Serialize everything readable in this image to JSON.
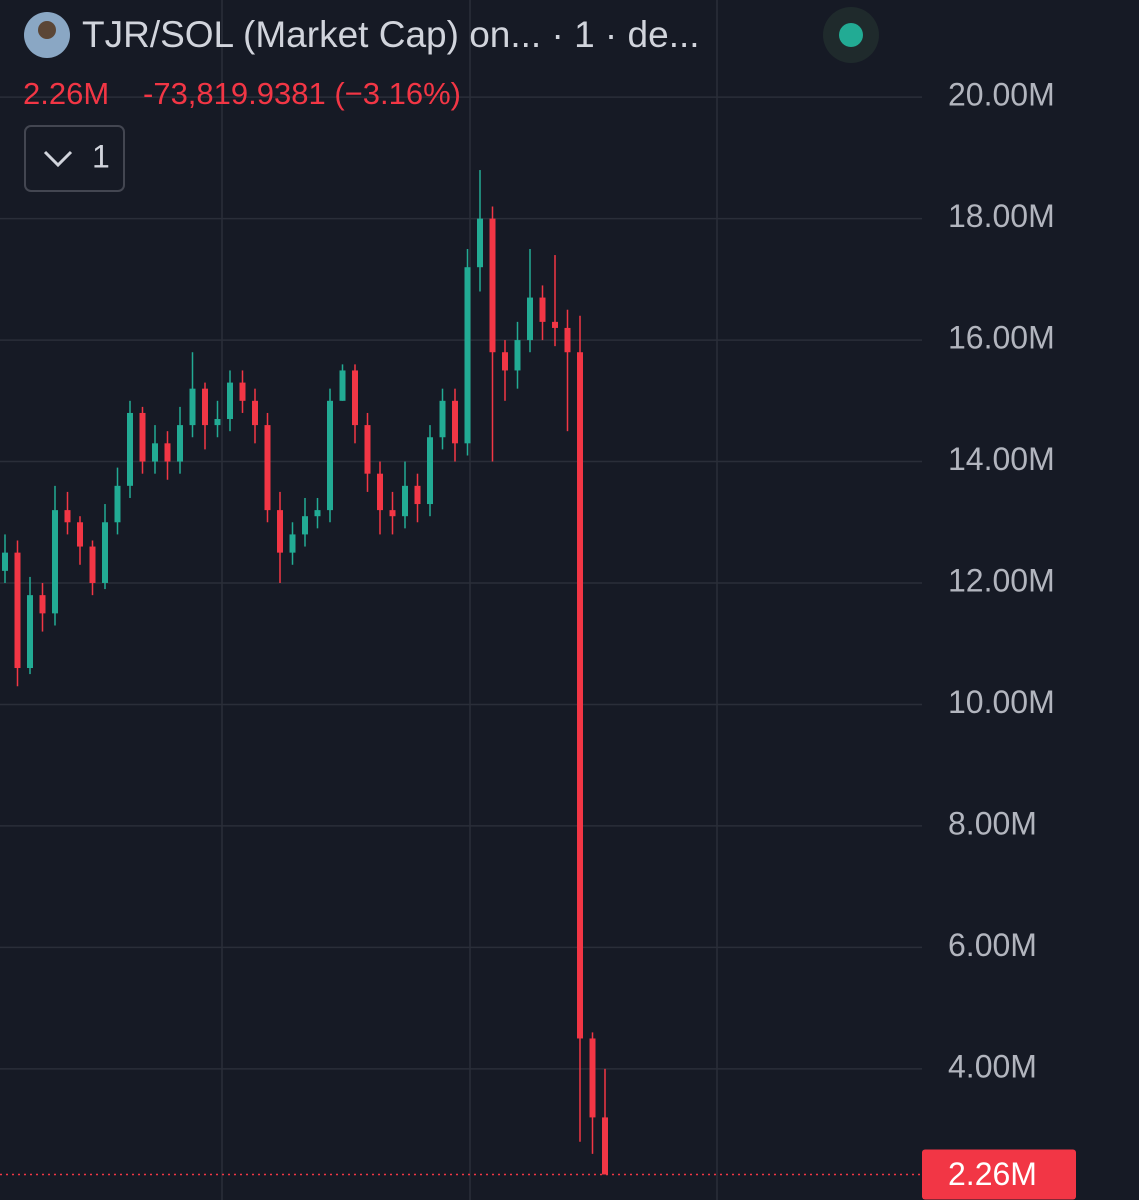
{
  "chart_data": {
    "type": "candlestick",
    "title": "TJR/SOL (Market Cap) on... · 1 · de...",
    "last_price": 2.26,
    "last_price_label": "2.26M",
    "change_text": "-73,819.9381 (−3.16%)",
    "indicator_count": "1",
    "up_color": "#22ab94",
    "down_color": "#f23645",
    "ylim": [
      1.84,
      21.6
    ],
    "yticks": [
      {
        "value": 20,
        "label": "20.00M"
      },
      {
        "value": 18,
        "label": "18.00M"
      },
      {
        "value": 16,
        "label": "16.00M"
      },
      {
        "value": 14,
        "label": "14.00M"
      },
      {
        "value": 12,
        "label": "12.00M"
      },
      {
        "value": 10,
        "label": "10.00M"
      },
      {
        "value": 8,
        "label": "8.00M"
      },
      {
        "value": 6,
        "label": "6.00M"
      },
      {
        "value": 4,
        "label": "4.00M"
      }
    ],
    "grid": true,
    "open": [
      12.2,
      12.5,
      10.6,
      11.8,
      11.5,
      13.2,
      13.0,
      12.6,
      12.0,
      13.0,
      13.6,
      14.8,
      14.0,
      14.3,
      14.0,
      14.6,
      15.2,
      14.6,
      14.7,
      15.3,
      15.0,
      14.6,
      13.2,
      12.5,
      12.8,
      13.1,
      13.2,
      15.0,
      15.5,
      14.6,
      13.8,
      13.2,
      13.1,
      13.6,
      13.3,
      14.4,
      15.0,
      14.3,
      17.2,
      18.0,
      15.8,
      15.5,
      16.0,
      16.7,
      16.3,
      16.2,
      15.8,
      4.5,
      3.2
    ],
    "high": [
      12.8,
      12.7,
      12.1,
      12.0,
      13.6,
      13.5,
      13.1,
      12.7,
      13.3,
      13.9,
      15.0,
      14.9,
      14.6,
      14.5,
      14.9,
      15.8,
      15.3,
      15.0,
      15.5,
      15.5,
      15.2,
      14.8,
      13.5,
      13.0,
      13.4,
      13.4,
      15.2,
      15.6,
      15.6,
      14.8,
      14.0,
      13.5,
      14.0,
      13.8,
      14.6,
      15.2,
      15.2,
      17.5,
      18.8,
      18.2,
      16.0,
      16.3,
      17.5,
      16.9,
      17.4,
      16.5,
      16.4,
      4.6,
      4.0
    ],
    "low": [
      12.0,
      10.3,
      10.5,
      11.2,
      11.3,
      12.8,
      12.3,
      11.8,
      11.9,
      12.8,
      13.4,
      13.8,
      13.8,
      13.7,
      13.8,
      14.4,
      14.2,
      14.4,
      14.5,
      14.8,
      14.3,
      13.0,
      12.0,
      12.3,
      12.6,
      12.9,
      13.0,
      15.0,
      14.3,
      13.5,
      12.8,
      12.8,
      12.9,
      13.0,
      13.1,
      14.2,
      14.0,
      14.1,
      16.8,
      14.0,
      15.0,
      15.2,
      15.8,
      16.0,
      15.9,
      14.5,
      2.8,
      2.6,
      2.26
    ],
    "close": [
      12.5,
      10.6,
      11.8,
      11.5,
      13.2,
      13.0,
      12.6,
      12.0,
      13.0,
      13.6,
      14.8,
      14.0,
      14.3,
      14.0,
      14.6,
      15.2,
      14.6,
      14.7,
      15.3,
      15.0,
      14.6,
      13.2,
      12.5,
      12.8,
      13.1,
      13.2,
      15.0,
      15.5,
      14.6,
      13.8,
      13.2,
      13.1,
      13.6,
      13.3,
      14.4,
      15.0,
      14.3,
      17.2,
      18.0,
      15.8,
      15.5,
      16.0,
      16.7,
      16.3,
      16.2,
      15.8,
      4.5,
      3.2,
      2.26
    ]
  }
}
